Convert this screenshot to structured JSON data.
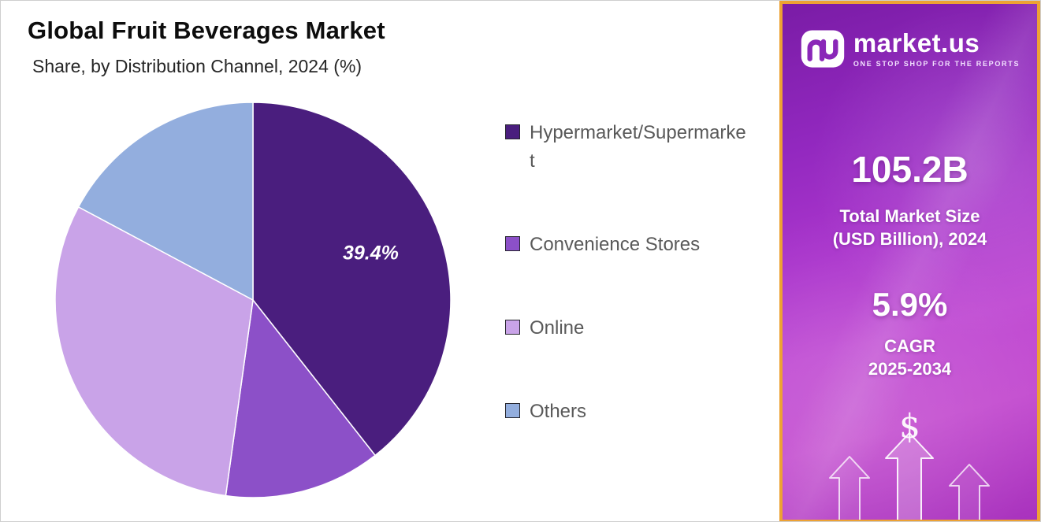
{
  "chart_data": {
    "type": "pie",
    "title": "Global Fruit Beverages Market",
    "subtitle": "Share, by Distribution Channel, 2024 (%)",
    "unit": "%",
    "start_angle": "top",
    "direction": "clockwise",
    "legend_position": "right",
    "slices": [
      {
        "label": "Hypermarket/Supermarket",
        "value": 39.4,
        "color": "#4A1E7E",
        "data_label": "39.4%"
      },
      {
        "label": "Convenience Stores",
        "value": 12.8,
        "color": "#8C50C8",
        "data_label": null
      },
      {
        "label": "Online",
        "value": 30.6,
        "color": "#C9A3E8",
        "data_label": null
      },
      {
        "label": "Others",
        "value": 17.2,
        "color": "#93AEDE",
        "data_label": null
      }
    ]
  },
  "side_panel": {
    "brand": {
      "name": "market.us",
      "tagline": "ONE STOP SHOP FOR THE REPORTS"
    },
    "market_size": {
      "value": "105.2B",
      "label_line1": "Total Market Size",
      "label_line2": "(USD Billion), 2024"
    },
    "cagr": {
      "value": "5.9%",
      "label_line1": "CAGR",
      "label_line2": "2025-2034"
    },
    "dollar_symbol": "$",
    "colors": {
      "border": "#EDA233",
      "background_top": "#7A1CA6",
      "background_bottom": "#A832BD"
    }
  }
}
